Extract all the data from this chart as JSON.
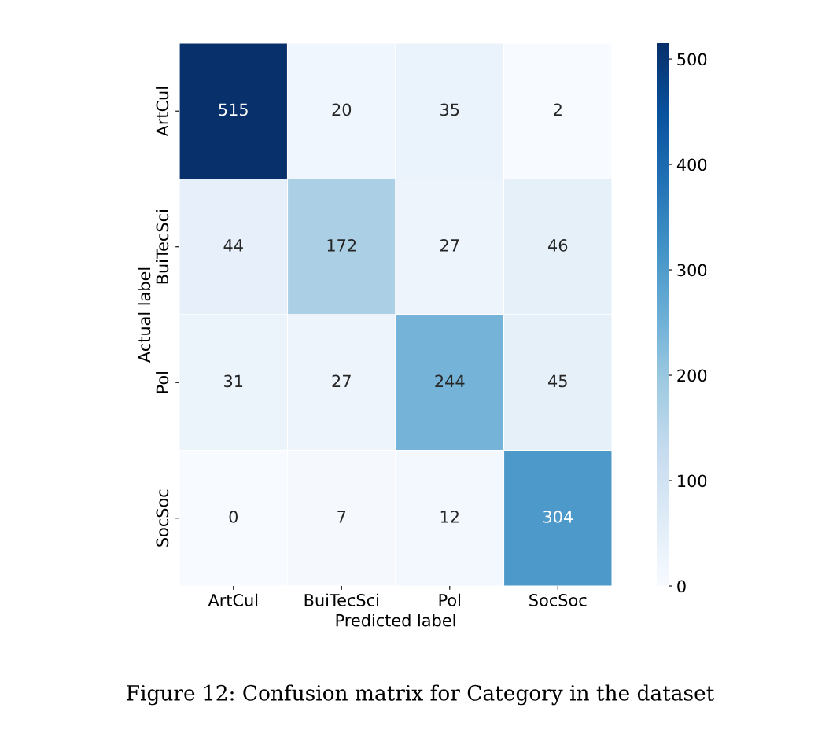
{
  "chart_data": {
    "type": "heatmap",
    "xlabel": "Predicted label",
    "ylabel": "Actual label",
    "categories": [
      "ArtCul",
      "BuiTecSci",
      "Pol",
      "SocSoc"
    ],
    "y_categories": [
      "ArtCul",
      "BuiTecSci",
      "Pol",
      "SocSoc"
    ],
    "cells": [
      [
        515,
        20,
        35,
        2
      ],
      [
        44,
        172,
        27,
        46
      ],
      [
        31,
        27,
        244,
        45
      ],
      [
        0,
        7,
        12,
        304
      ]
    ],
    "data_labels": true,
    "clim": [
      0,
      515
    ],
    "cticks": [
      0,
      100,
      200,
      300,
      400,
      500
    ],
    "annotations": [
      "Figure 12: Confusion matrix for Category in the dataset"
    ]
  }
}
